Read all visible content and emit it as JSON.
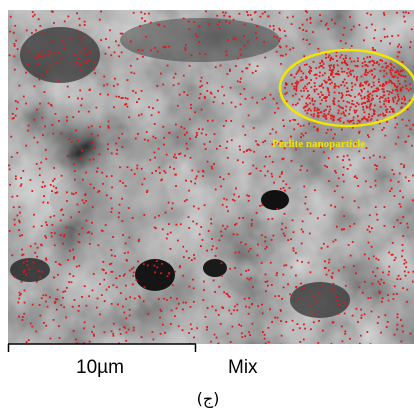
{
  "image": {
    "annotation": "Perlite nanoparticle"
  },
  "scale_bar": {
    "label": "10µm"
  },
  "map_label": "Mix",
  "caption": "(ج)"
}
